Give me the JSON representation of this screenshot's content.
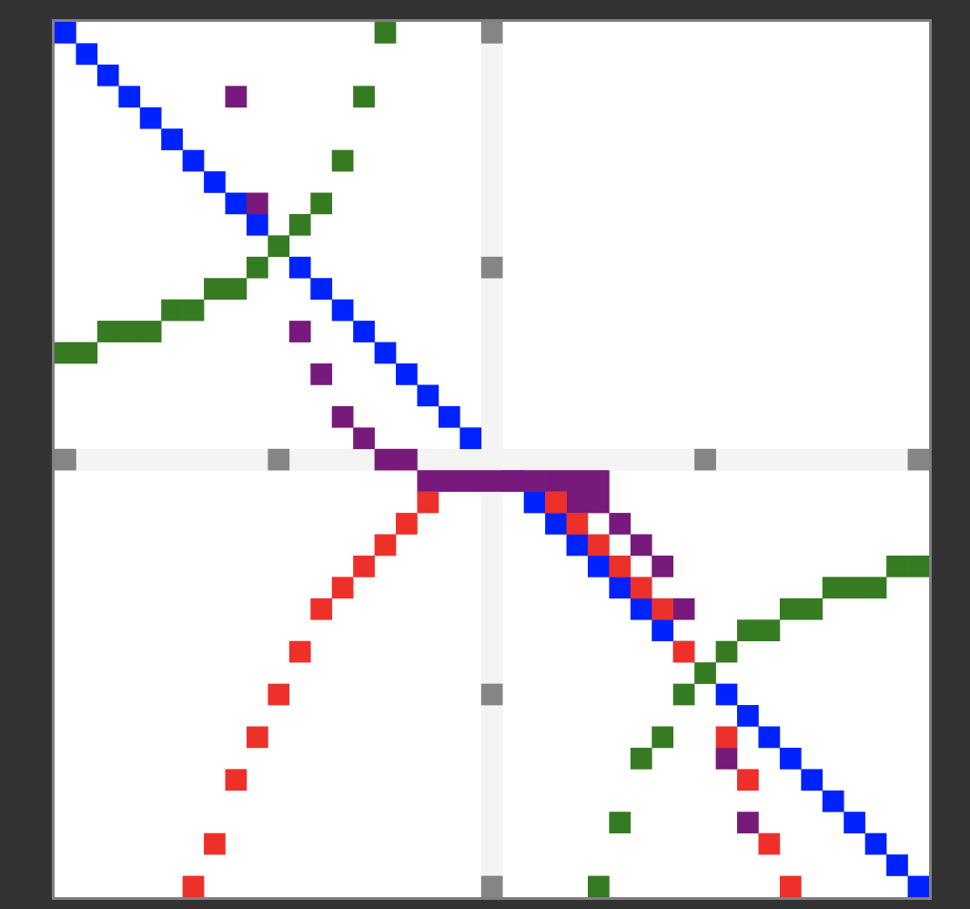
{
  "chart_data": {
    "type": "heatmap",
    "grid_size": 41,
    "title": "",
    "xlabel": "",
    "ylabel": "",
    "legend": "none",
    "grid": false,
    "colors": {
      "background": "#ffffff",
      "axis_band": "#f4f4f4",
      "tick_marker": "#858585",
      "blue": "#0022ff",
      "green": "#367b22",
      "purple": "#771a7b",
      "red": "#ed312a"
    },
    "axis_bands": {
      "row": 20,
      "col": 20
    },
    "tick_markers": [
      [
        0,
        20
      ],
      [
        11,
        20
      ],
      [
        20,
        0
      ],
      [
        20,
        10
      ],
      [
        20,
        30
      ],
      [
        20,
        40
      ],
      [
        31,
        20
      ],
      [
        40,
        20
      ]
    ],
    "series": [
      {
        "color_key": "blue",
        "cells": [
          [
            0,
            0
          ],
          [
            1,
            1
          ],
          [
            2,
            2
          ],
          [
            3,
            3
          ],
          [
            4,
            4
          ],
          [
            5,
            5
          ],
          [
            6,
            6
          ],
          [
            7,
            7
          ],
          [
            8,
            8
          ],
          [
            9,
            9
          ],
          [
            11,
            11
          ],
          [
            12,
            12
          ],
          [
            13,
            13
          ],
          [
            14,
            14
          ],
          [
            15,
            15
          ],
          [
            16,
            16
          ],
          [
            17,
            17
          ],
          [
            18,
            18
          ],
          [
            19,
            19
          ],
          [
            21,
            21
          ],
          [
            22,
            22
          ],
          [
            23,
            23
          ],
          [
            24,
            24
          ],
          [
            25,
            25
          ],
          [
            26,
            26
          ],
          [
            27,
            27
          ],
          [
            28,
            28
          ],
          [
            29,
            29
          ],
          [
            31,
            31
          ],
          [
            32,
            32
          ],
          [
            33,
            33
          ],
          [
            34,
            34
          ],
          [
            35,
            35
          ],
          [
            36,
            36
          ],
          [
            37,
            37
          ],
          [
            38,
            38
          ],
          [
            39,
            39
          ],
          [
            40,
            40
          ]
        ]
      },
      {
        "color_key": "green",
        "cells": [
          [
            0,
            15
          ],
          [
            3,
            14
          ],
          [
            6,
            13
          ],
          [
            8,
            12
          ],
          [
            9,
            11
          ],
          [
            10,
            10
          ],
          [
            11,
            9
          ],
          [
            12,
            7
          ],
          [
            12,
            8
          ],
          [
            13,
            5
          ],
          [
            13,
            6
          ],
          [
            14,
            2
          ],
          [
            14,
            3
          ],
          [
            14,
            4
          ],
          [
            15,
            0
          ],
          [
            15,
            1
          ],
          [
            25,
            39
          ],
          [
            25,
            40
          ],
          [
            26,
            36
          ],
          [
            26,
            37
          ],
          [
            26,
            38
          ],
          [
            27,
            34
          ],
          [
            27,
            35
          ],
          [
            28,
            32
          ],
          [
            28,
            33
          ],
          [
            29,
            31
          ],
          [
            30,
            30
          ],
          [
            31,
            29
          ],
          [
            33,
            28
          ],
          [
            34,
            27
          ],
          [
            37,
            26
          ],
          [
            40,
            25
          ]
        ]
      },
      {
        "color_key": "purple",
        "cells": [
          [
            3,
            8
          ],
          [
            8,
            9
          ],
          [
            14,
            11
          ],
          [
            16,
            12
          ],
          [
            18,
            13
          ],
          [
            19,
            14
          ],
          [
            20,
            15
          ],
          [
            20,
            16
          ],
          [
            21,
            17
          ],
          [
            21,
            18
          ],
          [
            21,
            19
          ],
          [
            21,
            20
          ],
          [
            21,
            21
          ],
          [
            21,
            22
          ],
          [
            21,
            23
          ],
          [
            21,
            24
          ],
          [
            21,
            25
          ],
          [
            22,
            24
          ],
          [
            22,
            25
          ],
          [
            23,
            26
          ],
          [
            24,
            27
          ],
          [
            25,
            28
          ],
          [
            27,
            29
          ],
          [
            34,
            31
          ],
          [
            37,
            32
          ]
        ]
      },
      {
        "color_key": "red",
        "cells": [
          [
            22,
            17
          ],
          [
            23,
            16
          ],
          [
            24,
            15
          ],
          [
            25,
            14
          ],
          [
            26,
            13
          ],
          [
            27,
            12
          ],
          [
            29,
            11
          ],
          [
            31,
            10
          ],
          [
            33,
            9
          ],
          [
            35,
            8
          ],
          [
            38,
            7
          ],
          [
            40,
            6
          ],
          [
            22,
            23
          ],
          [
            23,
            24
          ],
          [
            24,
            25
          ],
          [
            25,
            26
          ],
          [
            26,
            27
          ],
          [
            27,
            28
          ],
          [
            29,
            29
          ],
          [
            33,
            31
          ],
          [
            35,
            32
          ],
          [
            38,
            33
          ],
          [
            40,
            34
          ]
        ]
      }
    ]
  }
}
